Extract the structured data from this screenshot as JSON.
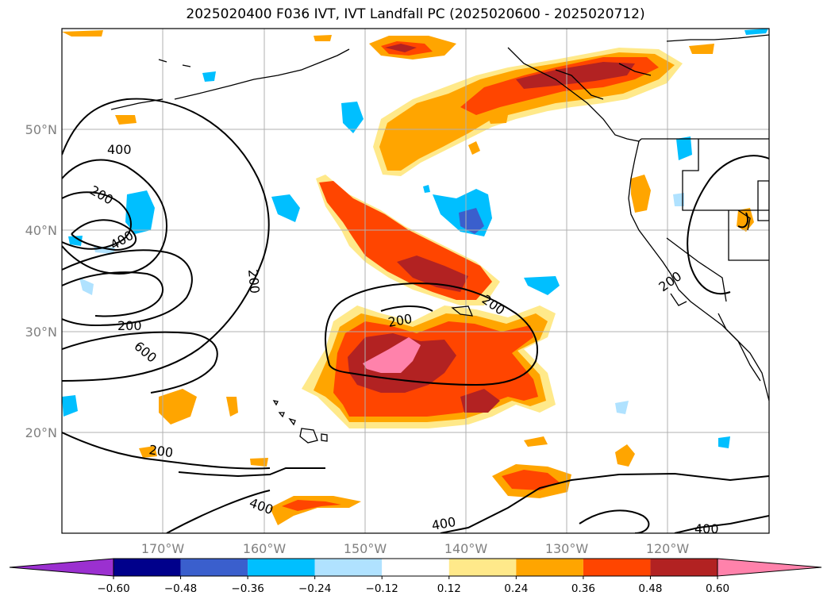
{
  "title": "2025020400 F036 IVT, IVT Landfall PC (2025020600 - 2025020712)",
  "map": {
    "projection": "plate-carree",
    "lon_range": [
      -180,
      -110
    ],
    "lat_range": [
      10,
      60
    ],
    "gridlines": true,
    "lon_ticks": [
      "170°W",
      "160°W",
      "150°W",
      "140°W",
      "130°W",
      "120°W"
    ],
    "lat_ticks": [
      "50°N",
      "40°N",
      "30°N",
      "20°N"
    ],
    "contour_labels": [
      "400",
      "200",
      "400",
      "200",
      "200",
      "600",
      "200",
      "200",
      "200",
      "400",
      "400",
      "200",
      "400"
    ]
  },
  "colorbar": {
    "extend": "both",
    "bins": [
      {
        "color": "#9b30d0"
      },
      {
        "color": "#00008b"
      },
      {
        "color": "#3a5fcd"
      },
      {
        "color": "#00bfff"
      },
      {
        "color": "#b0e2ff"
      },
      {
        "color": "#ffffff"
      },
      {
        "color": "#ffe98a"
      },
      {
        "color": "#ffa500"
      },
      {
        "color": "#ff4500"
      },
      {
        "color": "#b22222"
      },
      {
        "color": "#ff82ab"
      }
    ],
    "tick_labels": [
      "−0.60",
      "−0.48",
      "−0.36",
      "−0.24",
      "−0.12",
      "0.12",
      "0.24",
      "0.36",
      "0.48",
      "0.60"
    ]
  }
}
